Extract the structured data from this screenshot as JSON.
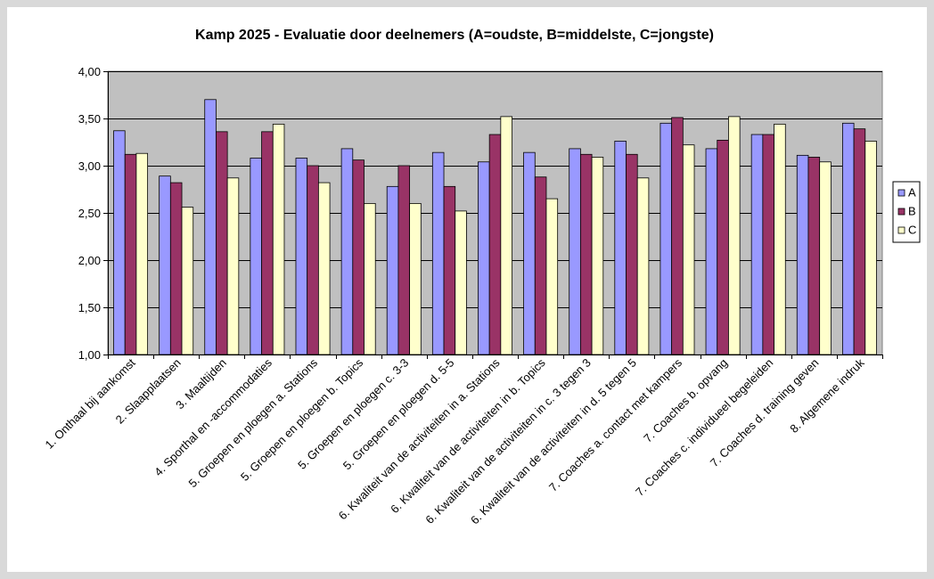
{
  "chart_data": {
    "type": "bar",
    "title": "Kamp 2025  - Evaluatie door deelnemers (A=oudste, B=middelste, C=jongste)",
    "xlabel": "",
    "ylabel": "",
    "ylim": [
      1.0,
      4.0
    ],
    "yticks": [
      "1,00",
      "1,50",
      "2,00",
      "2,50",
      "3,00",
      "3,50",
      "4,00"
    ],
    "ytick_values": [
      1.0,
      1.5,
      2.0,
      2.5,
      3.0,
      3.5,
      4.0
    ],
    "grid": true,
    "legend_position": "right",
    "categories": [
      "1. Onthaal bij aankomst",
      "2. Slaapplaatsen",
      "3. Maaltijden",
      "4. Sporthal en -accommodaties",
      "5. Groepen en ploegen a. Stations",
      "5. Groepen en ploegen b. Topics",
      "5. Groepen en ploegen c. 3-3",
      "5. Groepen en ploegen d. 5-5",
      "6. Kwaliteit van de activiteiten in  a. Stations",
      "6. Kwaliteit van de activiteiten in  b. Topics",
      "6. Kwaliteit van de activiteiten in  c. 3 tegen 3",
      "6. Kwaliteit van de activiteiten in  d. 5 tegen 5",
      "7. Coaches a. contact met kampers",
      "7. Coaches b. opvang",
      "7. Coaches c. individueel begeleiden",
      "7. Coaches d. training geven",
      "8. Algemene indruk"
    ],
    "series": [
      {
        "name": "A",
        "color": "#9999ff",
        "values": [
          3.37,
          2.89,
          3.7,
          3.08,
          3.08,
          3.18,
          2.78,
          3.14,
          3.04,
          3.14,
          3.18,
          3.26,
          3.45,
          3.18,
          3.33,
          3.11,
          3.45
        ]
      },
      {
        "name": "B",
        "color": "#993366",
        "values": [
          3.12,
          2.82,
          3.36,
          3.36,
          3.0,
          3.06,
          3.0,
          2.78,
          3.33,
          2.88,
          3.12,
          3.12,
          3.51,
          3.27,
          3.33,
          3.09,
          3.39
        ]
      },
      {
        "name": "C",
        "color": "#ffffcc",
        "values": [
          3.13,
          2.56,
          2.87,
          3.44,
          2.82,
          2.6,
          2.6,
          2.52,
          3.52,
          2.65,
          3.09,
          2.87,
          3.22,
          3.52,
          3.44,
          3.04,
          3.26
        ]
      }
    ],
    "plot_background": "#c0c0c0"
  }
}
